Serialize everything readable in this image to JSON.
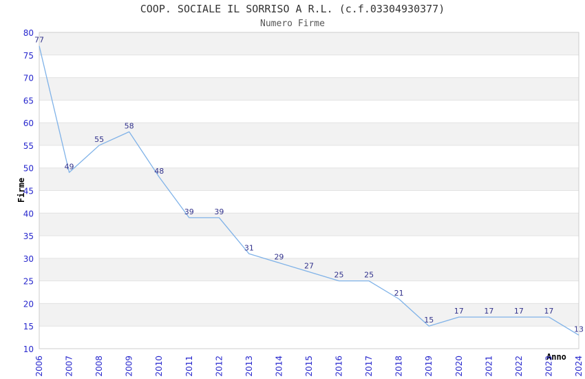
{
  "header": {
    "title": "COOP. SOCIALE IL SORRISO A R.L. (c.f.03304930377)",
    "subtitle": "Numero Firme"
  },
  "chart_data": {
    "type": "line",
    "title": "COOP. SOCIALE IL SORRISO A R.L. (c.f.03304930377)",
    "subtitle": "Numero Firme",
    "xlabel": "Anno",
    "ylabel": "Firme",
    "categories": [
      "2006",
      "2007",
      "2008",
      "2009",
      "2010",
      "2011",
      "2012",
      "2013",
      "2014",
      "2015",
      "2016",
      "2017",
      "2018",
      "2019",
      "2020",
      "2021",
      "2022",
      "2023",
      "2024"
    ],
    "series": [
      {
        "name": "Numero Firme",
        "values": [
          77,
          49,
          55,
          58,
          48,
          39,
          39,
          31,
          29,
          27,
          25,
          25,
          21,
          15,
          17,
          17,
          17,
          17,
          13
        ]
      }
    ],
    "ylim": [
      10,
      80
    ],
    "ytick_step": 5,
    "yticks": [
      10,
      15,
      20,
      25,
      30,
      35,
      40,
      45,
      50,
      55,
      60,
      65,
      70,
      75,
      80
    ],
    "grid": "horizontal-bands",
    "legend": "none",
    "data_labels": true,
    "colors": {
      "line": "#7fb2e8",
      "tick_label": "#2626cd",
      "data_label": "#32328c",
      "band": "#f2f2f2",
      "band_alt": "#ffffff",
      "gridline": "#e2e2e2",
      "plot_border": "#cccccc",
      "title": "#333333",
      "subtitle": "#555555",
      "axis_title": "#000000",
      "background": "#ffffff"
    }
  }
}
